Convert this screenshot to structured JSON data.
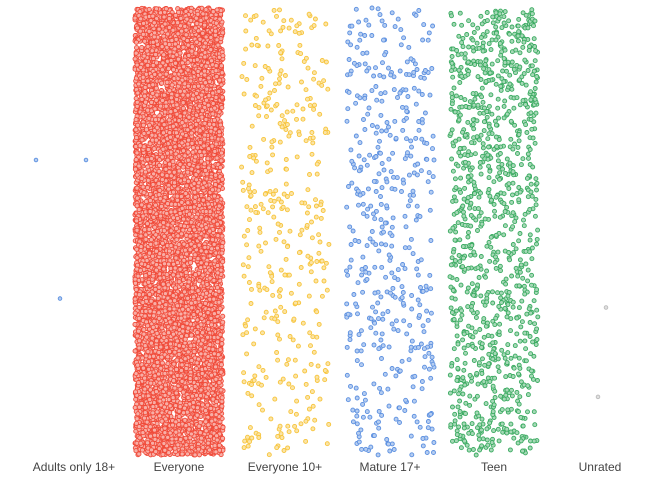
{
  "chart_data": {
    "type": "scatter",
    "subtype": "strip-jitter",
    "title": "",
    "xlabel": "",
    "ylabel": "",
    "grid": false,
    "legend": "none",
    "y_axis_visible": false,
    "categories": [
      "Adults only 18+",
      "Everyone",
      "Everyone 10+",
      "Mature 17+",
      "Teen",
      "Unrated"
    ],
    "series": [
      {
        "category": "Adults only 18+",
        "color": "#5b8fe0",
        "approx_points": 3,
        "y_levels": [
          0.66,
          0.66,
          0.35
        ]
      },
      {
        "category": "Everyone",
        "color": "#f04b3a",
        "approx_points": 7000
      },
      {
        "category": "Everyone 10+",
        "color": "#f7c43a",
        "approx_points": 380
      },
      {
        "category": "Mature 17+",
        "color": "#5b8fe0",
        "approx_points": 470
      },
      {
        "category": "Teen",
        "color": "#3aaa60",
        "approx_points": 1080
      },
      {
        "category": "Unrated",
        "color": "#bbbbbb",
        "approx_points": 2,
        "y_levels": [
          0.33,
          0.13
        ]
      }
    ]
  }
}
